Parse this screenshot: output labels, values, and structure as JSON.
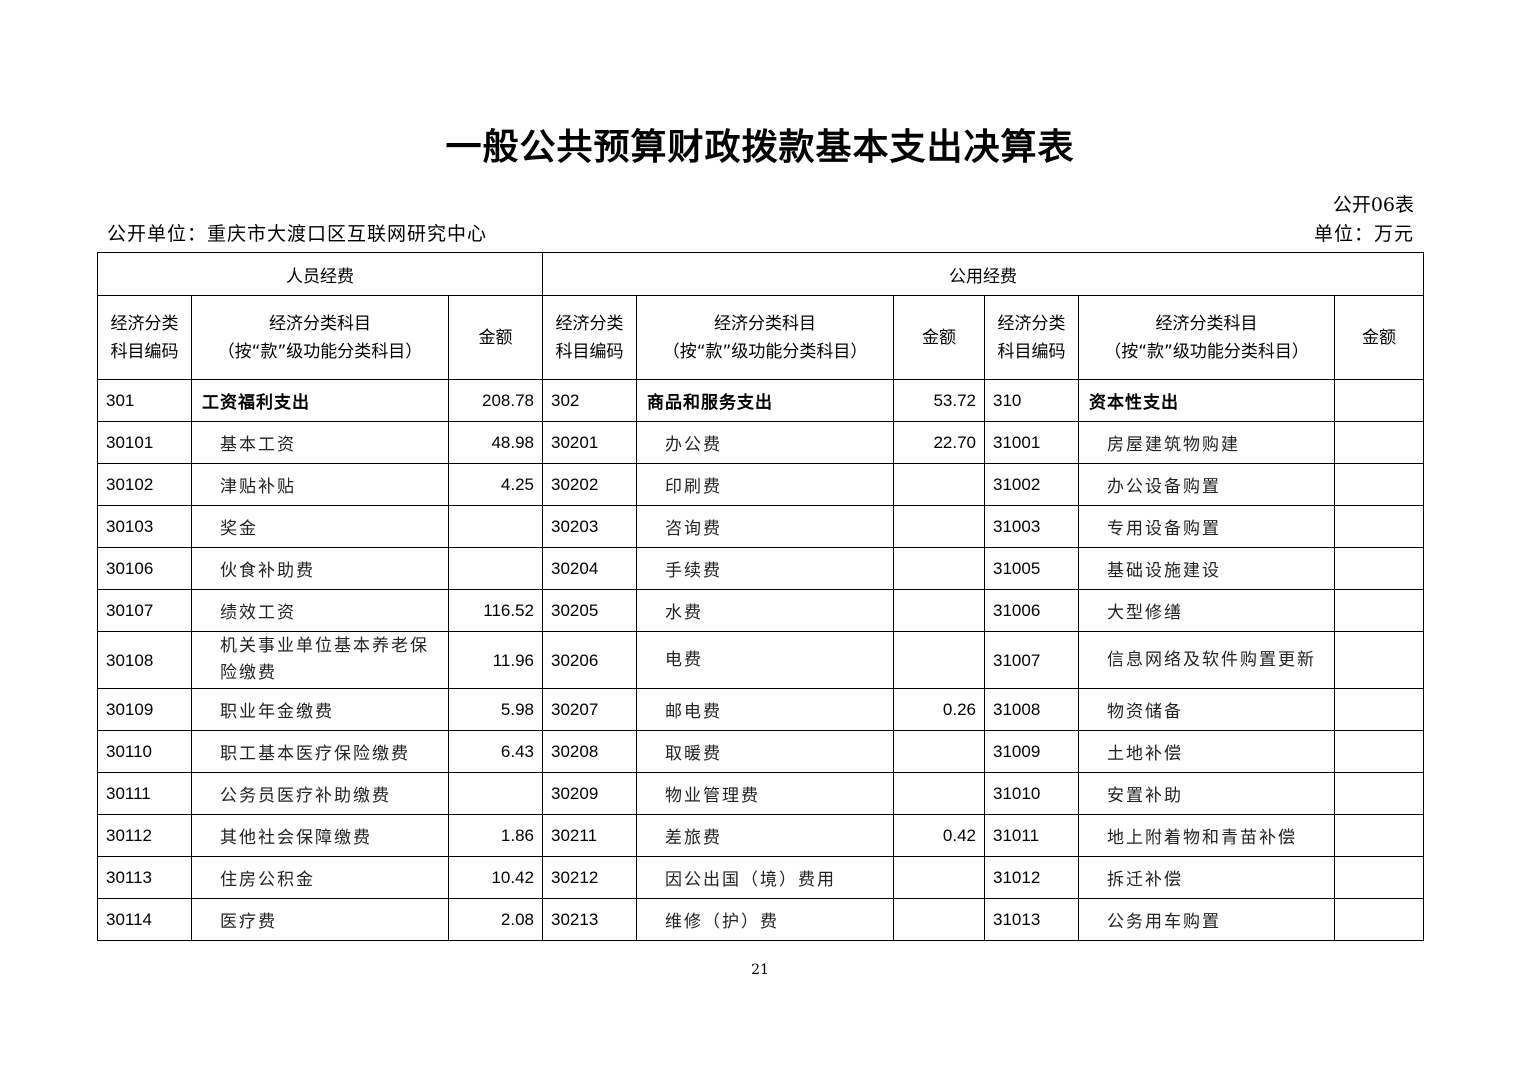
{
  "title": "一般公共预算财政拨款基本支出决算表",
  "form_no": "公开06表",
  "unit_label": "公开单位：重庆市大渡口区互联网研究中心",
  "currency_unit": "单位：万元",
  "headers": {
    "personnel": "人员经费",
    "public": "公用经费",
    "code": "经济分类科目编码",
    "code_line1": "经济分类",
    "code_line2": "科目编码",
    "subject_line1": "经济分类科目",
    "subject_line2": "（按“款”级功能分类科目）",
    "amount": "金额"
  },
  "rows": [
    {
      "c1": "301",
      "n1": "工资福利支出",
      "a1": "208.78",
      "c2": "302",
      "n2": "商品和服务支出",
      "a2": "53.72",
      "c3": "310",
      "n3": "资本性支出",
      "a3": ""
    },
    {
      "c1": "30101",
      "n1": "基本工资",
      "a1": "48.98",
      "c2": "30201",
      "n2": "办公费",
      "a2": "22.70",
      "c3": "31001",
      "n3": "房屋建筑物购建",
      "a3": ""
    },
    {
      "c1": "30102",
      "n1": "津贴补贴",
      "a1": "4.25",
      "c2": "30202",
      "n2": "印刷费",
      "a2": "",
      "c3": "31002",
      "n3": "办公设备购置",
      "a3": ""
    },
    {
      "c1": "30103",
      "n1": "奖金",
      "a1": "",
      "c2": "30203",
      "n2": "咨询费",
      "a2": "",
      "c3": "31003",
      "n3": "专用设备购置",
      "a3": ""
    },
    {
      "c1": "30106",
      "n1": "伙食补助费",
      "a1": "",
      "c2": "30204",
      "n2": "手续费",
      "a2": "",
      "c3": "31005",
      "n3": "基础设施建设",
      "a3": ""
    },
    {
      "c1": "30107",
      "n1": "绩效工资",
      "a1": "116.52",
      "c2": "30205",
      "n2": "水费",
      "a2": "",
      "c3": "31006",
      "n3": "大型修缮",
      "a3": ""
    },
    {
      "c1": "30108",
      "n1": "机关事业单位基本养老保险缴费",
      "a1": "11.96",
      "c2": "30206",
      "n2": "电费",
      "a2": "",
      "c3": "31007",
      "n3": "信息网络及软件购置更新",
      "a3": ""
    },
    {
      "c1": "30109",
      "n1": "职业年金缴费",
      "a1": "5.98",
      "c2": "30207",
      "n2": "邮电费",
      "a2": "0.26",
      "c3": "31008",
      "n3": "物资储备",
      "a3": ""
    },
    {
      "c1": "30110",
      "n1": "职工基本医疗保险缴费",
      "a1": "6.43",
      "c2": "30208",
      "n2": "取暖费",
      "a2": "",
      "c3": "31009",
      "n3": "土地补偿",
      "a3": ""
    },
    {
      "c1": "30111",
      "n1": "公务员医疗补助缴费",
      "a1": "",
      "c2": "30209",
      "n2": "物业管理费",
      "a2": "",
      "c3": "31010",
      "n3": "安置补助",
      "a3": ""
    },
    {
      "c1": "30112",
      "n1": "其他社会保障缴费",
      "a1": "1.86",
      "c2": "30211",
      "n2": "差旅费",
      "a2": "0.42",
      "c3": "31011",
      "n3": "地上附着物和青苗补偿",
      "a3": ""
    },
    {
      "c1": "30113",
      "n1": "住房公积金",
      "a1": "10.42",
      "c2": "30212",
      "n2": "因公出国（境）费用",
      "a2": "",
      "c3": "31012",
      "n3": "拆迁补偿",
      "a3": ""
    },
    {
      "c1": "30114",
      "n1": "医疗费",
      "a1": "2.08",
      "c2": "30213",
      "n2": "维修（护）费",
      "a2": "",
      "c3": "31013",
      "n3": "公务用车购置",
      "a3": ""
    }
  ],
  "page_number": "21"
}
